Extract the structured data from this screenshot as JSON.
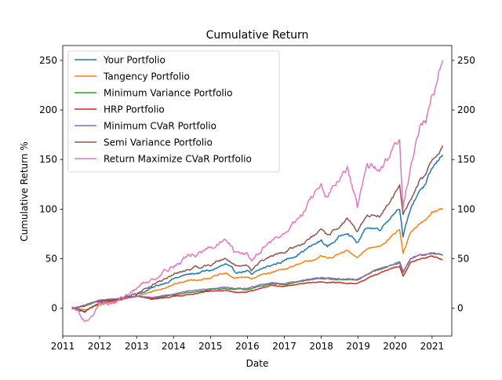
{
  "chart_data": {
    "type": "line",
    "title": "Cumulative Return",
    "xlabel": "Date",
    "ylabel": "Cumulative Return %",
    "x_range": [
      "2011-01-01",
      "2021-07-15"
    ],
    "x_ticks": [
      "2011",
      "2012",
      "2013",
      "2014",
      "2015",
      "2016",
      "2017",
      "2018",
      "2019",
      "2020",
      "2021"
    ],
    "ylim": [
      -28,
      265
    ],
    "y_ticks": [
      0,
      50,
      100,
      150,
      200,
      250
    ],
    "right_axis_ticks": true,
    "grid": false,
    "legend_position": "upper-left",
    "series": [
      {
        "name": "Your Portfolio",
        "color": "#1f77b4",
        "points": [
          [
            "2011-04-01",
            0
          ],
          [
            "2011-08-10",
            -3
          ],
          [
            "2012-01-01",
            5
          ],
          [
            "2012-06-01",
            7
          ],
          [
            "2013-01-01",
            14
          ],
          [
            "2013-06-01",
            20
          ],
          [
            "2014-01-01",
            30
          ],
          [
            "2014-06-01",
            34
          ],
          [
            "2015-01-01",
            38
          ],
          [
            "2015-06-01",
            44
          ],
          [
            "2015-09-01",
            36
          ],
          [
            "2016-01-01",
            38
          ],
          [
            "2016-02-10",
            33
          ],
          [
            "2016-06-01",
            40
          ],
          [
            "2017-01-01",
            48
          ],
          [
            "2017-06-01",
            56
          ],
          [
            "2018-01-01",
            68
          ],
          [
            "2018-03-01",
            62
          ],
          [
            "2018-09-15",
            78
          ],
          [
            "2018-12-24",
            66
          ],
          [
            "2019-04-01",
            82
          ],
          [
            "2019-08-01",
            80
          ],
          [
            "2020-02-15",
            103
          ],
          [
            "2020-03-20",
            72
          ],
          [
            "2020-06-01",
            100
          ],
          [
            "2020-09-01",
            120
          ],
          [
            "2020-11-01",
            125
          ],
          [
            "2021-01-01",
            140
          ],
          [
            "2021-03-01",
            148
          ],
          [
            "2021-04-15",
            155
          ]
        ]
      },
      {
        "name": "Tangency Portfolio",
        "color": "#ff7f0e",
        "points": [
          [
            "2011-04-01",
            0
          ],
          [
            "2011-08-10",
            -2
          ],
          [
            "2012-01-01",
            4
          ],
          [
            "2012-06-01",
            7
          ],
          [
            "2013-01-01",
            12
          ],
          [
            "2013-06-01",
            17
          ],
          [
            "2014-01-01",
            24
          ],
          [
            "2014-06-01",
            28
          ],
          [
            "2015-01-01",
            31
          ],
          [
            "2015-06-01",
            35
          ],
          [
            "2015-09-01",
            30
          ],
          [
            "2016-01-01",
            32
          ],
          [
            "2016-02-10",
            29
          ],
          [
            "2016-06-01",
            34
          ],
          [
            "2017-01-01",
            40
          ],
          [
            "2017-06-01",
            44
          ],
          [
            "2018-01-01",
            52
          ],
          [
            "2018-03-01",
            50
          ],
          [
            "2018-09-15",
            58
          ],
          [
            "2018-12-24",
            50
          ],
          [
            "2019-04-01",
            60
          ],
          [
            "2019-08-01",
            63
          ],
          [
            "2020-02-15",
            80
          ],
          [
            "2020-03-20",
            56
          ],
          [
            "2020-06-01",
            75
          ],
          [
            "2020-09-01",
            85
          ],
          [
            "2020-11-01",
            88
          ],
          [
            "2021-01-01",
            96
          ],
          [
            "2021-03-01",
            99
          ],
          [
            "2021-04-15",
            101
          ]
        ]
      },
      {
        "name": "Minimum Variance Portfolio",
        "color": "#2ca02c",
        "points": [
          [
            "2011-04-01",
            0
          ],
          [
            "2011-08-10",
            3
          ],
          [
            "2012-01-01",
            8
          ],
          [
            "2012-06-01",
            9
          ],
          [
            "2013-01-01",
            12
          ],
          [
            "2013-06-01",
            10
          ],
          [
            "2014-01-01",
            13
          ],
          [
            "2014-06-01",
            16
          ],
          [
            "2015-01-01",
            19
          ],
          [
            "2015-06-01",
            20
          ],
          [
            "2015-09-01",
            19
          ],
          [
            "2016-01-01",
            19
          ],
          [
            "2016-06-01",
            23
          ],
          [
            "2016-09-01",
            25
          ],
          [
            "2017-01-01",
            24
          ],
          [
            "2017-06-01",
            27
          ],
          [
            "2018-01-01",
            30
          ],
          [
            "2018-06-01",
            29
          ],
          [
            "2018-12-24",
            28
          ],
          [
            "2019-06-01",
            37
          ],
          [
            "2019-12-01",
            43
          ],
          [
            "2020-02-15",
            46
          ],
          [
            "2020-03-20",
            36
          ],
          [
            "2020-06-01",
            49
          ],
          [
            "2020-09-01",
            53
          ],
          [
            "2021-01-01",
            55
          ],
          [
            "2021-04-15",
            53
          ]
        ]
      },
      {
        "name": "HRP Portfolio",
        "color": "#d62728",
        "points": [
          [
            "2011-04-01",
            0
          ],
          [
            "2011-08-10",
            2
          ],
          [
            "2012-01-01",
            7
          ],
          [
            "2012-06-01",
            8
          ],
          [
            "2013-01-01",
            12
          ],
          [
            "2013-06-01",
            9
          ],
          [
            "2014-01-01",
            12
          ],
          [
            "2014-06-01",
            14
          ],
          [
            "2015-01-01",
            17
          ],
          [
            "2015-06-01",
            18
          ],
          [
            "2015-09-01",
            16
          ],
          [
            "2016-01-01",
            16
          ],
          [
            "2016-06-01",
            21
          ],
          [
            "2016-09-01",
            23
          ],
          [
            "2017-01-01",
            22
          ],
          [
            "2017-06-01",
            24
          ],
          [
            "2018-01-01",
            27
          ],
          [
            "2018-06-01",
            26
          ],
          [
            "2018-12-24",
            25
          ],
          [
            "2019-06-01",
            33
          ],
          [
            "2019-12-01",
            40
          ],
          [
            "2020-02-15",
            43
          ],
          [
            "2020-03-20",
            33
          ],
          [
            "2020-06-01",
            46
          ],
          [
            "2020-09-01",
            50
          ],
          [
            "2021-01-01",
            52
          ],
          [
            "2021-04-15",
            49
          ]
        ]
      },
      {
        "name": "Minimum CVaR Portfolio",
        "color": "#9467bd",
        "points": [
          [
            "2011-04-01",
            0
          ],
          [
            "2011-08-10",
            3
          ],
          [
            "2012-01-01",
            8
          ],
          [
            "2012-06-01",
            9
          ],
          [
            "2013-01-01",
            12
          ],
          [
            "2013-06-01",
            11
          ],
          [
            "2014-01-01",
            14
          ],
          [
            "2014-06-01",
            17
          ],
          [
            "2015-01-01",
            20
          ],
          [
            "2015-06-01",
            21
          ],
          [
            "2015-09-01",
            20
          ],
          [
            "2016-01-01",
            20
          ],
          [
            "2016-06-01",
            24
          ],
          [
            "2016-09-01",
            26
          ],
          [
            "2017-01-01",
            25
          ],
          [
            "2017-06-01",
            28
          ],
          [
            "2018-01-01",
            31
          ],
          [
            "2018-06-01",
            30
          ],
          [
            "2018-12-24",
            29
          ],
          [
            "2019-06-01",
            38
          ],
          [
            "2019-12-01",
            44
          ],
          [
            "2020-02-15",
            47
          ],
          [
            "2020-03-20",
            37
          ],
          [
            "2020-06-01",
            50
          ],
          [
            "2020-09-01",
            54
          ],
          [
            "2021-01-01",
            56
          ],
          [
            "2021-04-15",
            54
          ]
        ]
      },
      {
        "name": "Semi Variance Portfolio",
        "color": "#8c564b",
        "points": [
          [
            "2011-04-01",
            0
          ],
          [
            "2011-08-10",
            -2
          ],
          [
            "2012-01-01",
            6
          ],
          [
            "2012-06-01",
            8
          ],
          [
            "2013-01-01",
            15
          ],
          [
            "2013-06-01",
            23
          ],
          [
            "2014-01-01",
            34
          ],
          [
            "2014-06-01",
            39
          ],
          [
            "2015-01-01",
            44
          ],
          [
            "2015-06-01",
            51
          ],
          [
            "2015-09-01",
            43
          ],
          [
            "2016-01-01",
            44
          ],
          [
            "2016-02-10",
            39
          ],
          [
            "2016-06-01",
            48
          ],
          [
            "2017-01-01",
            57
          ],
          [
            "2017-06-01",
            64
          ],
          [
            "2018-01-01",
            78
          ],
          [
            "2018-03-01",
            72
          ],
          [
            "2018-09-15",
            90
          ],
          [
            "2018-12-24",
            76
          ],
          [
            "2019-04-01",
            95
          ],
          [
            "2019-08-01",
            93
          ],
          [
            "2020-02-15",
            122
          ],
          [
            "2020-03-20",
            92
          ],
          [
            "2020-06-01",
            108
          ],
          [
            "2020-09-01",
            130
          ],
          [
            "2020-11-01",
            135
          ],
          [
            "2021-01-01",
            150
          ],
          [
            "2021-03-01",
            158
          ],
          [
            "2021-04-15",
            164
          ]
        ]
      },
      {
        "name": "Return Maximize CVaR Portfolio",
        "color": "#e377c2",
        "points": [
          [
            "2011-04-01",
            0
          ],
          [
            "2011-06-01",
            -4
          ],
          [
            "2011-08-10",
            -14
          ],
          [
            "2011-10-01",
            -8
          ],
          [
            "2012-01-01",
            5
          ],
          [
            "2012-06-01",
            6
          ],
          [
            "2013-01-01",
            20
          ],
          [
            "2013-06-01",
            30
          ],
          [
            "2014-01-01",
            44
          ],
          [
            "2014-06-01",
            52
          ],
          [
            "2015-01-01",
            60
          ],
          [
            "2015-06-01",
            68
          ],
          [
            "2015-09-01",
            55
          ],
          [
            "2016-01-01",
            56
          ],
          [
            "2016-02-10",
            49
          ],
          [
            "2016-06-01",
            62
          ],
          [
            "2017-01-01",
            75
          ],
          [
            "2017-06-01",
            92
          ],
          [
            "2018-01-01",
            125
          ],
          [
            "2018-03-01",
            112
          ],
          [
            "2018-09-15",
            140
          ],
          [
            "2018-12-24",
            100
          ],
          [
            "2019-04-01",
            145
          ],
          [
            "2019-08-01",
            138
          ],
          [
            "2020-02-15",
            175
          ],
          [
            "2020-03-20",
            105
          ],
          [
            "2020-06-01",
            140
          ],
          [
            "2020-09-01",
            185
          ],
          [
            "2020-11-01",
            190
          ],
          [
            "2021-01-01",
            220
          ],
          [
            "2021-03-01",
            230
          ],
          [
            "2021-04-15",
            250
          ]
        ]
      }
    ]
  }
}
